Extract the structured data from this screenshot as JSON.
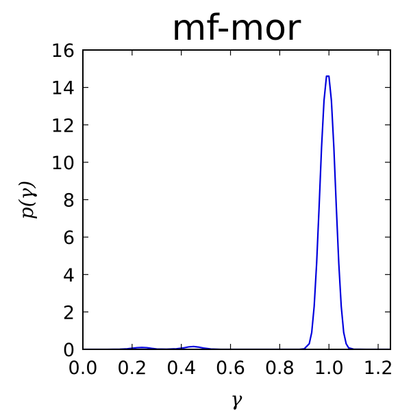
{
  "chart_data": {
    "type": "line",
    "title": "mf-mor",
    "xlabel": "γ",
    "ylabel": "p(γ)",
    "xlim": [
      0.0,
      1.25
    ],
    "ylim": [
      0,
      16
    ],
    "xticks": [
      0.0,
      0.2,
      0.4,
      0.6,
      0.8,
      1.0,
      1.2
    ],
    "xtick_labels": [
      "0.0",
      "0.2",
      "0.4",
      "0.6",
      "0.8",
      "1.0",
      "1.2"
    ],
    "yticks": [
      0,
      2,
      4,
      6,
      8,
      10,
      12,
      14,
      16
    ],
    "ytick_labels": [
      "0",
      "2",
      "4",
      "6",
      "8",
      "10",
      "12",
      "14",
      "16"
    ],
    "grid": false,
    "series": [
      {
        "color": "#0000dd",
        "x": [
          0.0,
          0.05,
          0.1,
          0.15,
          0.18,
          0.2,
          0.22,
          0.24,
          0.26,
          0.28,
          0.3,
          0.34,
          0.38,
          0.41,
          0.43,
          0.45,
          0.47,
          0.49,
          0.52,
          0.56,
          0.6,
          0.7,
          0.8,
          0.88,
          0.9,
          0.92,
          0.93,
          0.94,
          0.95,
          0.96,
          0.97,
          0.98,
          0.99,
          1.0,
          1.01,
          1.02,
          1.03,
          1.04,
          1.05,
          1.06,
          1.07,
          1.08,
          1.1,
          1.15,
          1.2,
          1.25
        ],
        "y": [
          0.0,
          0.0,
          0.0,
          0.01,
          0.03,
          0.06,
          0.09,
          0.1,
          0.09,
          0.05,
          0.02,
          0.01,
          0.03,
          0.08,
          0.13,
          0.15,
          0.12,
          0.07,
          0.02,
          0.0,
          0.0,
          0.0,
          0.0,
          0.0,
          0.03,
          0.3,
          0.9,
          2.3,
          4.6,
          7.6,
          10.8,
          13.3,
          14.6,
          14.6,
          13.3,
          10.8,
          7.6,
          4.6,
          2.3,
          0.9,
          0.3,
          0.08,
          0.01,
          0.0,
          0.0,
          0.0
        ]
      }
    ]
  }
}
